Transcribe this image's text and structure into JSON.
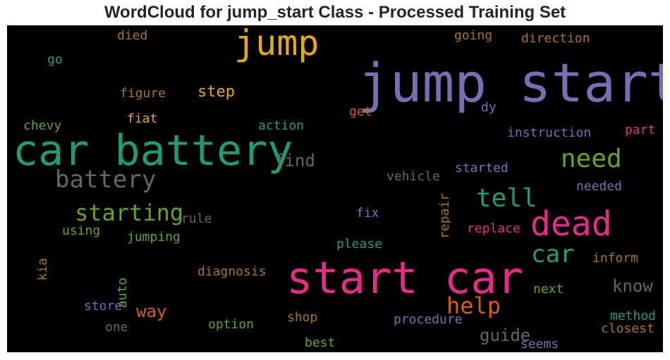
{
  "chart_data": {
    "type": "wordcloud",
    "title": "WordCloud for jump_start Class - Processed Training Set",
    "background": "#000000",
    "words": [
      {
        "text": "jump start",
        "color": "#7570b3"
      },
      {
        "text": "car battery",
        "color": "#1b9e77"
      },
      {
        "text": "start car",
        "color": "#e7298a"
      },
      {
        "text": "jump",
        "color": "#e6ab02"
      },
      {
        "text": "dead",
        "color": "#e7298a"
      },
      {
        "text": "battery",
        "color": "#666666"
      },
      {
        "text": "need",
        "color": "#66a61e"
      },
      {
        "text": "tell",
        "color": "#1b9e77"
      },
      {
        "text": "starting",
        "color": "#66a61e"
      },
      {
        "text": "car",
        "color": "#1b9e77"
      },
      {
        "text": "help",
        "color": "#d95f02"
      },
      {
        "text": "guide",
        "color": "#666666"
      },
      {
        "text": "find",
        "color": "#666666"
      },
      {
        "text": "know",
        "color": "#666666"
      },
      {
        "text": "way",
        "color": "#d95f02"
      },
      {
        "text": "step",
        "color": "#e6ab02"
      },
      {
        "text": "died",
        "color": "#a6761d"
      },
      {
        "text": "going",
        "color": "#a6761d"
      },
      {
        "text": "direction",
        "color": "#a6761d"
      },
      {
        "text": "go",
        "color": "#1b9e77"
      },
      {
        "text": "figure",
        "color": "#a6761d"
      },
      {
        "text": "get",
        "color": "#d95f02"
      },
      {
        "text": "dy",
        "color": "#7570b3"
      },
      {
        "text": "fiat",
        "color": "#e6ab02"
      },
      {
        "text": "chevy",
        "color": "#66a61e"
      },
      {
        "text": "action",
        "color": "#1b9e77"
      },
      {
        "text": "instruction",
        "color": "#7570b3"
      },
      {
        "text": "part",
        "color": "#e7298a"
      },
      {
        "text": "vehicle",
        "color": "#666666"
      },
      {
        "text": "started",
        "color": "#7570b3"
      },
      {
        "text": "needed",
        "color": "#7570b3"
      },
      {
        "text": "rule",
        "color": "#666666"
      },
      {
        "text": "fix",
        "color": "#7570b3"
      },
      {
        "text": "repair",
        "color": "#a6761d"
      },
      {
        "text": "using",
        "color": "#66a61e"
      },
      {
        "text": "jumping",
        "color": "#66a61e"
      },
      {
        "text": "replace",
        "color": "#e7298a"
      },
      {
        "text": "please",
        "color": "#1b9e77"
      },
      {
        "text": "kia",
        "color": "#a6761d"
      },
      {
        "text": "inform",
        "color": "#a6761d"
      },
      {
        "text": "auto",
        "color": "#66a61e"
      },
      {
        "text": "diagnosis",
        "color": "#a6761d"
      },
      {
        "text": "next",
        "color": "#66a61e"
      },
      {
        "text": "store",
        "color": "#7570b3"
      },
      {
        "text": "shop",
        "color": "#a6761d"
      },
      {
        "text": "procedure",
        "color": "#7570b3"
      },
      {
        "text": "method",
        "color": "#1b9e77"
      },
      {
        "text": "one",
        "color": "#666666"
      },
      {
        "text": "option",
        "color": "#66a61e"
      },
      {
        "text": "closest",
        "color": "#a6761d"
      },
      {
        "text": "seems",
        "color": "#7570b3"
      },
      {
        "text": "best",
        "color": "#66a61e"
      }
    ]
  }
}
